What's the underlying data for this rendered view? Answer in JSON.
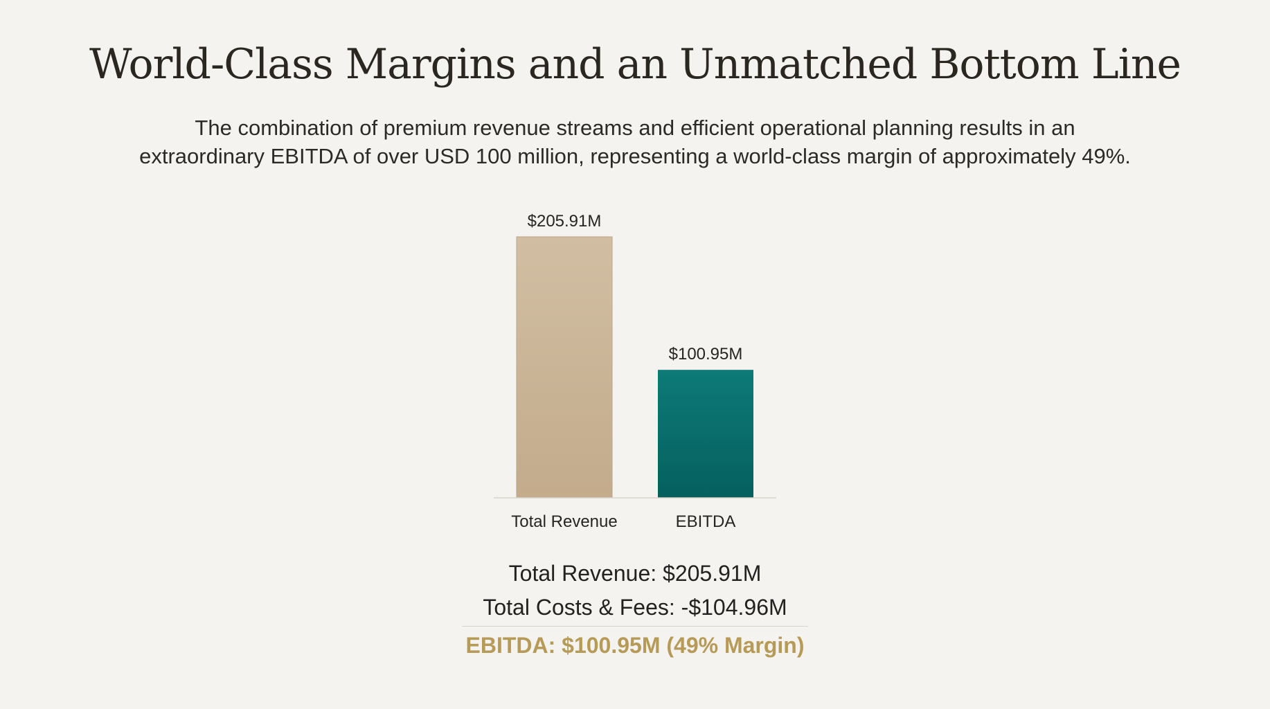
{
  "slide": {
    "title": "World-Class Margins and an Unmatched Bottom Line",
    "subtitle_line1": "The combination of premium revenue streams and efficient operational planning results in an",
    "subtitle_line2": "extraordinary EBITDA of over USD 100 million, representing a world-class margin of approximately 49%."
  },
  "chart_data": {
    "type": "bar",
    "categories": [
      "Total Revenue",
      "EBITDA"
    ],
    "values": [
      205.91,
      100.95
    ],
    "data_labels": [
      "$205.91M",
      "$100.95M"
    ],
    "title": "",
    "xlabel": "",
    "ylabel": "",
    "ylim": [
      0,
      205.91
    ],
    "grid": false,
    "legend": "none",
    "colors": [
      "#c9b395",
      "#0b7472"
    ]
  },
  "summary": {
    "revenue": "Total Revenue: $205.91M",
    "costs": "Total Costs & Fees: -$104.96M",
    "ebitda": "EBITDA: $100.95M (49% Margin)",
    "ebitda_color": "#b69a57"
  }
}
